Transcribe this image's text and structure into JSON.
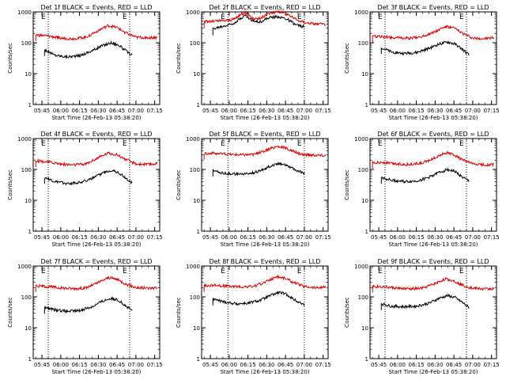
{
  "figure": {
    "colors": {
      "events": "#000000",
      "lld": "#dd0000",
      "axis": "#000000",
      "marker": "#000000"
    },
    "marker_label": "E"
  },
  "chart_data": [
    {
      "type": "line",
      "title": "Det 1f BLACK = Events, RED = LLD",
      "xlabel": "Start Time (26-Feb-13 05:38:20)",
      "ylabel": "Counts/sec",
      "yscale": "log",
      "ylim": [
        1,
        1000
      ],
      "xlim": [
        "05:38",
        "07:19"
      ],
      "x_ticks": [
        "05:45",
        "06:00",
        "06:15",
        "06:30",
        "06:45",
        "07:00",
        "07:15"
      ],
      "y_ticks": [
        "1",
        "10",
        "100",
        "1000"
      ],
      "marker_times": [
        "05:50",
        "06:55"
      ],
      "series": [
        {
          "name": "Events",
          "color": "#000000",
          "x": [
            "05:47",
            "05:55",
            "06:05",
            "06:15",
            "06:25",
            "06:33",
            "06:40",
            "06:46",
            "06:52",
            "06:57"
          ],
          "values": [
            60,
            40,
            35,
            38,
            55,
            80,
            100,
            85,
            55,
            38
          ]
        },
        {
          "name": "LLD",
          "color": "#dd0000",
          "x": [
            "05:40",
            "05:50",
            "06:00",
            "06:10",
            "06:20",
            "06:30",
            "06:38",
            "06:45",
            "06:52",
            "07:00",
            "07:10",
            "07:17"
          ],
          "values": [
            180,
            165,
            140,
            135,
            150,
            250,
            360,
            310,
            210,
            150,
            145,
            150
          ]
        }
      ]
    },
    {
      "type": "line",
      "title": "Det 2f BLACK = Events, RED = LLD",
      "xlabel": "Start Time (26-Feb-13 05:38:20)",
      "ylabel": "Counts/sec",
      "yscale": "log",
      "ylim": [
        1,
        1000
      ],
      "xlim": [
        "05:38",
        "07:19"
      ],
      "x_ticks": [
        "05:45",
        "06:00",
        "06:15",
        "06:30",
        "06:45",
        "07:00",
        "07:15"
      ],
      "y_ticks": [
        "1",
        "10",
        "100",
        "1000"
      ],
      "marker_times": [
        "05:59",
        "07:00"
      ],
      "series": [
        {
          "name": "Events",
          "color": "#000000",
          "x": [
            "05:47",
            "05:55",
            "06:03",
            "06:09",
            "06:13",
            "06:18",
            "06:25",
            "06:32",
            "06:40",
            "06:47",
            "06:53",
            "07:00"
          ],
          "values": [
            280,
            340,
            420,
            620,
            780,
            520,
            480,
            650,
            700,
            560,
            380,
            330
          ]
        },
        {
          "name": "LLD",
          "color": "#dd0000",
          "x": [
            "05:40",
            "05:55",
            "06:03",
            "06:09",
            "06:13",
            "06:18",
            "06:25",
            "06:32",
            "06:40",
            "06:47",
            "06:55",
            "07:05",
            "07:17"
          ],
          "values": [
            480,
            520,
            560,
            800,
            1000,
            620,
            620,
            900,
            1050,
            820,
            520,
            420,
            390
          ]
        }
      ]
    },
    {
      "type": "line",
      "title": "Det 3f BLACK = Events, RED = LLD",
      "xlabel": "Start Time (26-Feb-13 05:38:20)",
      "ylabel": "Counts/sec",
      "yscale": "log",
      "ylim": [
        1,
        1000
      ],
      "xlim": [
        "05:38",
        "07:19"
      ],
      "x_ticks": [
        "05:45",
        "06:00",
        "06:15",
        "06:30",
        "06:45",
        "07:00",
        "07:15"
      ],
      "y_ticks": [
        "1",
        "10",
        "100",
        "1000"
      ],
      "marker_times": [
        "05:50",
        "06:55"
      ],
      "series": [
        {
          "name": "Events",
          "color": "#000000",
          "x": [
            "05:47",
            "05:55",
            "06:05",
            "06:15",
            "06:25",
            "06:33",
            "06:40",
            "06:46",
            "06:52",
            "06:57"
          ],
          "values": [
            70,
            50,
            45,
            48,
            65,
            90,
            105,
            90,
            60,
            40
          ]
        },
        {
          "name": "LLD",
          "color": "#dd0000",
          "x": [
            "05:40",
            "05:50",
            "06:00",
            "06:10",
            "06:20",
            "06:30",
            "06:38",
            "06:45",
            "06:52",
            "07:00",
            "07:10",
            "07:17"
          ],
          "values": [
            160,
            155,
            145,
            140,
            160,
            230,
            330,
            300,
            200,
            140,
            135,
            145
          ]
        }
      ]
    },
    {
      "type": "line",
      "title": "Det 4f BLACK = Events, RED = LLD",
      "xlabel": "Start Time (26-Feb-13 05:38:20)",
      "ylabel": "Counts/sec",
      "yscale": "log",
      "ylim": [
        1,
        1000
      ],
      "xlim": [
        "05:38",
        "07:19"
      ],
      "x_ticks": [
        "05:45",
        "06:00",
        "06:15",
        "06:30",
        "06:45",
        "07:00",
        "07:15"
      ],
      "y_ticks": [
        "1",
        "10",
        "100",
        "1000"
      ],
      "marker_times": [
        "05:50",
        "06:55"
      ],
      "series": [
        {
          "name": "Events",
          "color": "#000000",
          "x": [
            "05:47",
            "05:55",
            "06:05",
            "06:15",
            "06:25",
            "06:33",
            "06:40",
            "06:46",
            "06:52",
            "06:57"
          ],
          "values": [
            55,
            40,
            35,
            38,
            50,
            75,
            95,
            80,
            52,
            36
          ]
        },
        {
          "name": "LLD",
          "color": "#dd0000",
          "x": [
            "05:40",
            "05:50",
            "06:00",
            "06:10",
            "06:20",
            "06:30",
            "06:38",
            "06:45",
            "06:52",
            "07:00",
            "07:10",
            "07:17"
          ],
          "values": [
            190,
            175,
            150,
            140,
            150,
            240,
            340,
            300,
            210,
            150,
            145,
            155
          ]
        }
      ]
    },
    {
      "type": "line",
      "title": "Det 5f BLACK = Events, RED = LLD",
      "xlabel": "Start Time (26-Feb-13 05:38:20)",
      "ylabel": "Counts/sec",
      "yscale": "log",
      "ylim": [
        1,
        1000
      ],
      "xlim": [
        "05:38",
        "07:19"
      ],
      "x_ticks": [
        "05:45",
        "06:00",
        "06:15",
        "06:30",
        "06:45",
        "07:00",
        "07:15"
      ],
      "y_ticks": [
        "1",
        "10",
        "100",
        "1000"
      ],
      "marker_times": [
        "05:59",
        "07:00"
      ],
      "series": [
        {
          "name": "Events",
          "color": "#000000",
          "x": [
            "05:47",
            "05:55",
            "06:05",
            "06:15",
            "06:25",
            "06:33",
            "06:40",
            "06:46",
            "06:52",
            "07:00"
          ],
          "values": [
            95,
            75,
            70,
            72,
            90,
            130,
            160,
            140,
            100,
            75
          ]
        },
        {
          "name": "LLD",
          "color": "#dd0000",
          "x": [
            "05:40",
            "05:50",
            "06:00",
            "06:10",
            "06:20",
            "06:30",
            "06:38",
            "06:45",
            "06:52",
            "07:00",
            "07:10",
            "07:17"
          ],
          "values": [
            330,
            330,
            310,
            300,
            310,
            420,
            560,
            500,
            370,
            300,
            290,
            280
          ]
        }
      ]
    },
    {
      "type": "line",
      "title": "Det 6f BLACK = Events, RED = LLD",
      "xlabel": "Start Time (26-Feb-13 05:38:20)",
      "ylabel": "Counts/sec",
      "yscale": "log",
      "ylim": [
        1,
        1000
      ],
      "xlim": [
        "05:38",
        "07:19"
      ],
      "x_ticks": [
        "05:45",
        "06:00",
        "06:15",
        "06:30",
        "06:45",
        "07:00",
        "07:15"
      ],
      "y_ticks": [
        "1",
        "10",
        "100",
        "1000"
      ],
      "marker_times": [
        "05:50",
        "06:55"
      ],
      "series": [
        {
          "name": "Events",
          "color": "#000000",
          "x": [
            "05:47",
            "05:55",
            "06:05",
            "06:15",
            "06:25",
            "06:33",
            "06:40",
            "06:46",
            "06:52",
            "06:57"
          ],
          "values": [
            55,
            45,
            40,
            42,
            55,
            80,
            100,
            85,
            55,
            42
          ]
        },
        {
          "name": "LLD",
          "color": "#dd0000",
          "x": [
            "05:40",
            "05:50",
            "06:00",
            "06:10",
            "06:20",
            "06:30",
            "06:38",
            "06:45",
            "06:52",
            "07:00",
            "07:10",
            "07:17"
          ],
          "values": [
            170,
            165,
            150,
            145,
            160,
            240,
            350,
            300,
            200,
            150,
            140,
            145
          ]
        }
      ]
    },
    {
      "type": "line",
      "title": "Det 7f BLACK = Events, RED = LLD",
      "xlabel": "Start Time (26-Feb-13 05:38:20)",
      "ylabel": "Counts/sec",
      "yscale": "log",
      "ylim": [
        1,
        1000
      ],
      "xlim": [
        "05:38",
        "07:19"
      ],
      "x_ticks": [
        "05:45",
        "06:00",
        "06:15",
        "06:30",
        "06:45",
        "07:00",
        "07:15"
      ],
      "y_ticks": [
        "1",
        "10",
        "100",
        "1000"
      ],
      "marker_times": [
        "05:50",
        "06:55"
      ],
      "series": [
        {
          "name": "Events",
          "color": "#000000",
          "x": [
            "05:47",
            "05:55",
            "06:05",
            "06:15",
            "06:25",
            "06:33",
            "06:40",
            "06:46",
            "06:52",
            "06:57"
          ],
          "values": [
            45,
            38,
            34,
            36,
            48,
            72,
            90,
            78,
            50,
            36
          ]
        },
        {
          "name": "LLD",
          "color": "#dd0000",
          "x": [
            "05:40",
            "05:50",
            "06:00",
            "06:10",
            "06:20",
            "06:30",
            "06:38",
            "06:45",
            "06:52",
            "07:00",
            "07:10",
            "07:17"
          ],
          "values": [
            230,
            215,
            195,
            185,
            195,
            290,
            420,
            370,
            260,
            200,
            190,
            200
          ]
        }
      ]
    },
    {
      "type": "line",
      "title": "Det 8f BLACK = Events, RED = LLD",
      "xlabel": "Start Time (26-Feb-13 05:38:20)",
      "ylabel": "Counts/sec",
      "yscale": "log",
      "ylim": [
        1,
        1000
      ],
      "xlim": [
        "05:38",
        "07:19"
      ],
      "x_ticks": [
        "05:45",
        "06:00",
        "06:15",
        "06:30",
        "06:45",
        "07:00",
        "07:15"
      ],
      "y_ticks": [
        "1",
        "10",
        "100",
        "1000"
      ],
      "marker_times": [
        "05:59",
        "07:00"
      ],
      "series": [
        {
          "name": "Events",
          "color": "#000000",
          "x": [
            "05:47",
            "05:55",
            "06:05",
            "06:15",
            "06:25",
            "06:33",
            "06:40",
            "06:46",
            "06:52",
            "07:00"
          ],
          "values": [
            85,
            70,
            60,
            62,
            78,
            110,
            140,
            120,
            80,
            55
          ]
        },
        {
          "name": "LLD",
          "color": "#dd0000",
          "x": [
            "05:40",
            "05:50",
            "06:00",
            "06:10",
            "06:20",
            "06:30",
            "06:38",
            "06:45",
            "06:52",
            "07:00",
            "07:10",
            "07:17"
          ],
          "values": [
            230,
            240,
            220,
            210,
            220,
            320,
            460,
            400,
            280,
            220,
            200,
            210
          ]
        }
      ]
    },
    {
      "type": "line",
      "title": "Det 9f BLACK = Events, RED = LLD",
      "xlabel": "Start Time (26-Feb-13 05:38:20)",
      "ylabel": "Counts/sec",
      "yscale": "log",
      "ylim": [
        1,
        1000
      ],
      "xlim": [
        "05:38",
        "07:19"
      ],
      "x_ticks": [
        "05:45",
        "06:00",
        "06:15",
        "06:30",
        "06:45",
        "07:00",
        "07:15"
      ],
      "y_ticks": [
        "1",
        "10",
        "100",
        "1000"
      ],
      "marker_times": [
        "05:50",
        "06:55"
      ],
      "series": [
        {
          "name": "Events",
          "color": "#000000",
          "x": [
            "05:47",
            "05:55",
            "06:05",
            "06:15",
            "06:25",
            "06:33",
            "06:40",
            "06:46",
            "06:52",
            "06:57"
          ],
          "values": [
            60,
            50,
            48,
            50,
            62,
            90,
            110,
            95,
            65,
            45
          ]
        },
        {
          "name": "LLD",
          "color": "#dd0000",
          "x": [
            "05:40",
            "05:50",
            "06:00",
            "06:10",
            "06:20",
            "06:30",
            "06:38",
            "06:45",
            "06:52",
            "07:00",
            "07:10",
            "07:17"
          ],
          "values": [
            220,
            210,
            190,
            180,
            190,
            270,
            380,
            330,
            240,
            190,
            180,
            185
          ]
        }
      ]
    }
  ]
}
